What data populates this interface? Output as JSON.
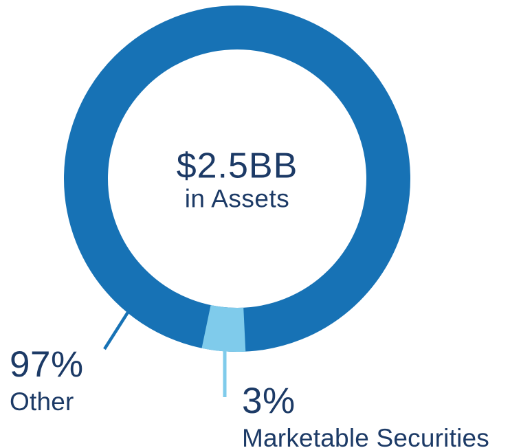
{
  "chart_data": {
    "type": "pie",
    "variant": "donut",
    "categories": [
      "Other",
      "Marketable Securities"
    ],
    "values": [
      97,
      3
    ],
    "unit": "%",
    "title": "",
    "center_label": {
      "value": "$2.5BB",
      "caption": "in Assets"
    },
    "legend_position": "callouts-with-leader-lines",
    "segment_colors": [
      "#1772B5",
      "#7FCBEB"
    ]
  },
  "center": {
    "value": "$2.5BB",
    "caption": "in Assets"
  },
  "callouts": {
    "other": {
      "percent": "97%",
      "label": "Other"
    },
    "marketable_securities": {
      "percent": "3%",
      "label": "Marketable Securities"
    }
  },
  "colors": {
    "primary_blue": "#1772B5",
    "light_blue": "#7FCBEB",
    "navy_text": "#1C3A66",
    "background": "#FFFFFF"
  }
}
